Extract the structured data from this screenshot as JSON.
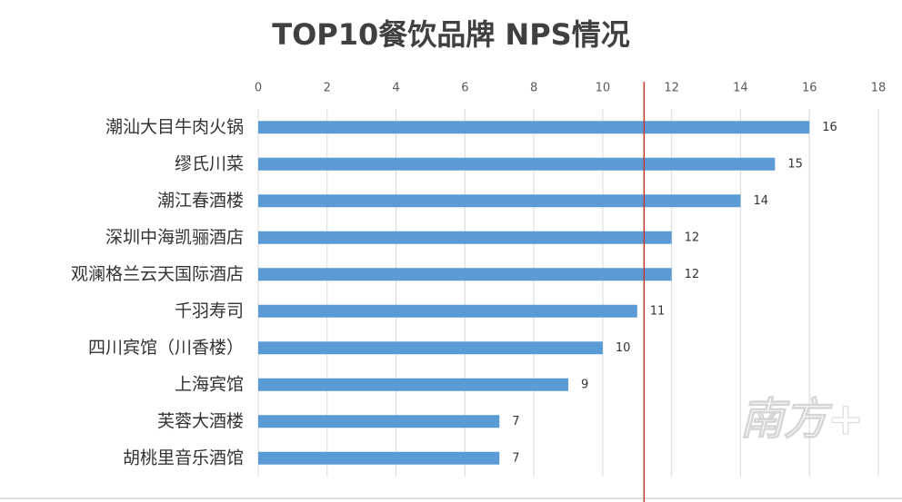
{
  "chart_data": {
    "type": "bar",
    "orientation": "horizontal",
    "title": "TOP10餐饮品牌  NPS情况",
    "categories": [
      "潮汕大目牛肉火锅",
      "缪氏川菜",
      "潮江春酒楼",
      "深圳中海凯骊酒店",
      "观澜格兰云天国际酒店",
      "千羽寿司",
      "四川宾馆（川香楼）",
      "上海宾馆",
      "芙蓉大酒楼",
      "胡桃里音乐酒馆"
    ],
    "values": [
      16,
      15,
      14,
      12,
      12,
      11,
      10,
      9,
      7,
      7
    ],
    "color": "#5b9bd5",
    "xlim": [
      0,
      18
    ],
    "xticks": [
      0,
      2,
      4,
      6,
      8,
      10,
      12,
      14,
      16,
      18
    ],
    "grid": true,
    "reference_x": 11.2,
    "reference_color": "#c0392b",
    "watermark": "南方+"
  }
}
